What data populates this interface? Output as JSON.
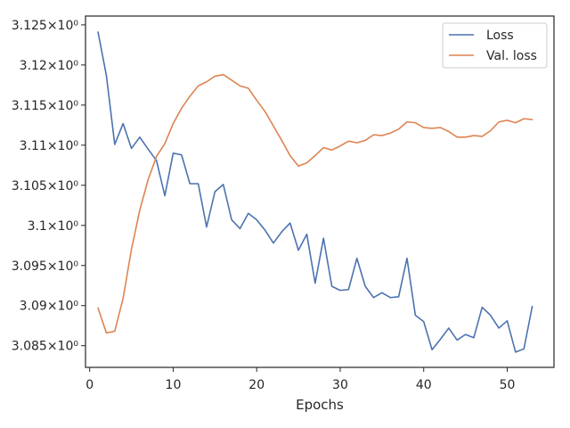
{
  "chart_data": {
    "type": "line",
    "title": "",
    "xlabel": "Epochs",
    "ylabel": "",
    "xlim": [
      -0.5,
      55.6
    ],
    "ylim": [
      3.0823,
      3.1261
    ],
    "grid": false,
    "legend_position": "top-right",
    "x_ticks": [
      0,
      10,
      20,
      30,
      40,
      50
    ],
    "x_tick_labels": [
      "0",
      "10",
      "20",
      "30",
      "40",
      "50"
    ],
    "y_ticks": [
      3.085,
      3.09,
      3.095,
      3.1,
      3.105,
      3.11,
      3.115,
      3.12,
      3.125
    ],
    "y_tick_labels": [
      "3.085×10⁰",
      "3.09×10⁰",
      "3.095×10⁰",
      "3.1×10⁰",
      "3.105×10⁰",
      "3.11×10⁰",
      "3.115×10⁰",
      "3.12×10⁰",
      "3.125×10⁰"
    ],
    "x": [
      1,
      2,
      3,
      4,
      5,
      6,
      7,
      8,
      9,
      10,
      11,
      12,
      13,
      14,
      15,
      16,
      17,
      18,
      19,
      20,
      21,
      22,
      23,
      24,
      25,
      26,
      27,
      28,
      29,
      30,
      31,
      32,
      33,
      34,
      35,
      36,
      37,
      38,
      39,
      40,
      41,
      42,
      43,
      44,
      45,
      46,
      47,
      48,
      49,
      50,
      51,
      52,
      53
    ],
    "series": [
      {
        "name": "Loss",
        "color": "#4c72b0",
        "values": [
          3.1241,
          3.1187,
          3.1101,
          3.1127,
          3.1096,
          3.111,
          3.1095,
          3.1081,
          3.1037,
          3.109,
          3.1088,
          3.1052,
          3.1052,
          3.0998,
          3.1042,
          3.1051,
          3.1007,
          3.0996,
          3.1015,
          3.1007,
          3.0994,
          3.0978,
          3.0992,
          3.1003,
          3.0969,
          3.0989,
          3.0928,
          3.0984,
          3.0924,
          3.0919,
          3.092,
          3.0959,
          3.0924,
          3.091,
          3.0916,
          3.091,
          3.0911,
          3.0959,
          3.0888,
          3.088,
          3.0845,
          3.0858,
          3.0872,
          3.0857,
          3.0864,
          3.086,
          3.0898,
          3.0888,
          3.0872,
          3.0881,
          3.0842,
          3.0846,
          3.0899
        ]
      },
      {
        "name": "Val. loss",
        "color": "#dd8452",
        "values": [
          3.0897,
          3.0866,
          3.0868,
          3.0909,
          3.097,
          3.1019,
          3.1057,
          3.1086,
          3.1102,
          3.1127,
          3.1146,
          3.1161,
          3.1174,
          3.1179,
          3.1186,
          3.1188,
          3.1181,
          3.1174,
          3.1171,
          3.1156,
          3.1142,
          3.1124,
          3.1106,
          3.1087,
          3.1074,
          3.1078,
          3.1087,
          3.1097,
          3.1094,
          3.1099,
          3.1105,
          3.1103,
          3.1106,
          3.1113,
          3.1112,
          3.1115,
          3.112,
          3.1129,
          3.1128,
          3.1122,
          3.1121,
          3.1122,
          3.1117,
          3.111,
          3.111,
          3.1112,
          3.1111,
          3.1118,
          3.1129,
          3.1131,
          3.1128,
          3.1133,
          3.1132
        ]
      }
    ]
  }
}
